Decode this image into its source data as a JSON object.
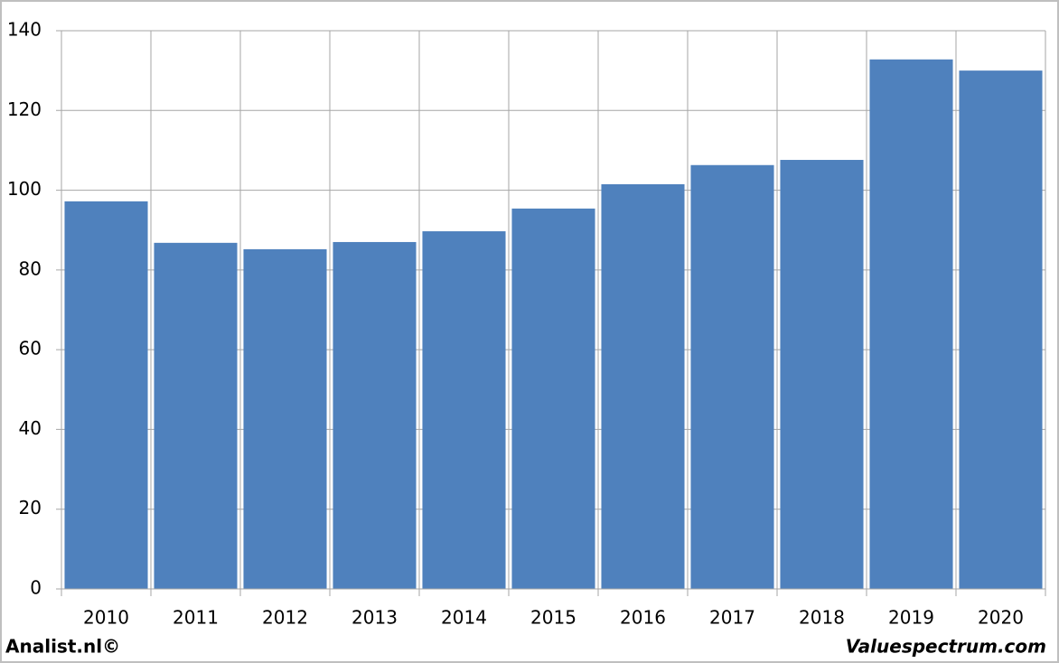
{
  "chart_data": {
    "type": "bar",
    "categories": [
      "2010",
      "2011",
      "2012",
      "2013",
      "2014",
      "2015",
      "2016",
      "2017",
      "2018",
      "2019",
      "2020"
    ],
    "values": [
      97.2,
      86.8,
      85.2,
      87.0,
      89.7,
      95.4,
      101.5,
      106.3,
      107.6,
      132.8,
      130.0
    ],
    "color": "#4f81bd",
    "ylim": [
      0,
      140
    ],
    "yticks": [
      0,
      20,
      40,
      60,
      80,
      100,
      120,
      140
    ],
    "grid": true,
    "source": "Analist.nl©",
    "credit": "Valuespectrum.com"
  }
}
